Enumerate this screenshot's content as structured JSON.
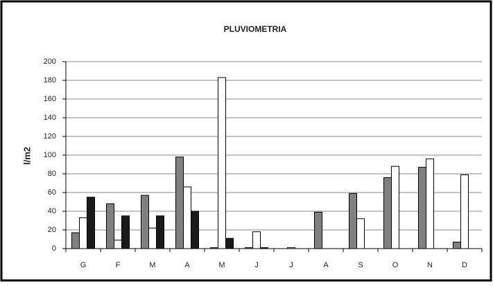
{
  "chart_data": {
    "type": "bar",
    "title": "PLUVIOMETRIA",
    "y_label": "l/m2",
    "categories": [
      "G",
      "F",
      "M",
      "A",
      "M",
      "J",
      "J",
      "A",
      "S",
      "O",
      "N",
      "D"
    ],
    "series": [
      {
        "color": "#808080",
        "values": [
          17,
          48,
          57,
          98,
          1,
          1,
          0,
          39,
          59,
          76,
          87,
          7
        ]
      },
      {
        "color": "#ffffff",
        "values": [
          33,
          9,
          22,
          66,
          183,
          18,
          1,
          0,
          32,
          88,
          96,
          79
        ]
      },
      {
        "color": "#1a1a1a",
        "values": [
          55,
          35,
          35,
          40,
          11,
          1,
          0,
          0,
          null,
          null,
          null,
          null
        ]
      }
    ],
    "ylim": [
      0,
      200
    ],
    "yticks": [
      0,
      20,
      40,
      60,
      80,
      100,
      120,
      140,
      160,
      180,
      200
    ],
    "grid": true
  }
}
